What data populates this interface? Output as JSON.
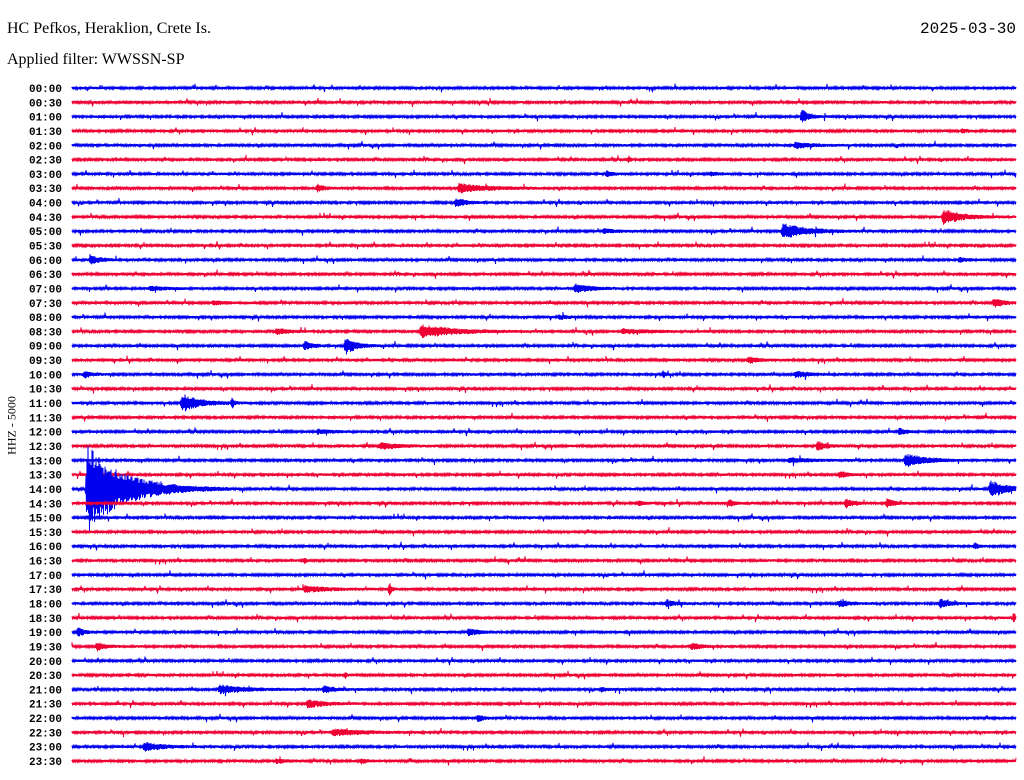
{
  "header": {
    "station": "HC Pefkos, Heraklion, Crete Is.",
    "filter": "Applied filter: WWSSN-SP",
    "date": "2025-03-30"
  },
  "chart_data": {
    "type": "line",
    "title": "HC Pefkos, Heraklion, Crete Is.",
    "ylabel": "HHZ - 5000",
    "row_minutes": 30,
    "colors": [
      "#0000ee",
      "#ee0033"
    ],
    "rows": [
      "00:00",
      "00:30",
      "01:00",
      "01:30",
      "02:00",
      "02:30",
      "03:00",
      "03:30",
      "04:00",
      "04:30",
      "05:00",
      "05:30",
      "06:00",
      "06:30",
      "07:00",
      "07:30",
      "08:00",
      "08:30",
      "09:00",
      "09:30",
      "10:00",
      "10:30",
      "11:00",
      "11:30",
      "12:00",
      "12:30",
      "13:00",
      "13:30",
      "14:00",
      "14:30",
      "15:00",
      "15:30",
      "16:00",
      "16:30",
      "17:00",
      "17:30",
      "18:00",
      "18:30",
      "19:00",
      "19:30",
      "20:00",
      "20:30",
      "21:00",
      "21:30",
      "22:00",
      "22:30",
      "23:00",
      "23:30"
    ],
    "events": [
      {
        "row": 2,
        "minute": 23.2,
        "amp": 6,
        "dur": 0.4
      },
      {
        "row": 3,
        "minute": 28.3,
        "amp": 2,
        "dur": 0.3
      },
      {
        "row": 4,
        "minute": 23.0,
        "amp": 3,
        "dur": 0.8
      },
      {
        "row": 5,
        "minute": 17.7,
        "amp": 3,
        "dur": 0.1
      },
      {
        "row": 6,
        "minute": 17.0,
        "amp": 2.5,
        "dur": 0.3
      },
      {
        "row": 6,
        "minute": 20.3,
        "amp": 1.5,
        "dur": 0.5
      },
      {
        "row": 7,
        "minute": 7.8,
        "amp": 3,
        "dur": 0.4
      },
      {
        "row": 7,
        "minute": 12.3,
        "amp": 4,
        "dur": 1.5
      },
      {
        "row": 8,
        "minute": 12.2,
        "amp": 4,
        "dur": 0.5
      },
      {
        "row": 9,
        "minute": 27.7,
        "amp": 7,
        "dur": 0.9
      },
      {
        "row": 10,
        "minute": 22.6,
        "amp": 7,
        "dur": 1.2
      },
      {
        "row": 10,
        "minute": 16.9,
        "amp": 2,
        "dur": 0.6
      },
      {
        "row": 12,
        "minute": 0.6,
        "amp": 4,
        "dur": 0.5
      },
      {
        "row": 12,
        "minute": 28.2,
        "amp": 2,
        "dur": 0.4
      },
      {
        "row": 14,
        "minute": 16.0,
        "amp": 4,
        "dur": 0.8
      },
      {
        "row": 14,
        "minute": 2.5,
        "amp": 2,
        "dur": 0.8
      },
      {
        "row": 15,
        "minute": 29.3,
        "amp": 4,
        "dur": 0.5
      },
      {
        "row": 15,
        "minute": 4.5,
        "amp": 2,
        "dur": 0.6
      },
      {
        "row": 16,
        "minute": 15.5,
        "amp": 2,
        "dur": 0.4
      },
      {
        "row": 17,
        "minute": 11.1,
        "amp": 6,
        "dur": 1.6
      },
      {
        "row": 17,
        "minute": 6.5,
        "amp": 2.5,
        "dur": 0.7
      },
      {
        "row": 17,
        "minute": 17.5,
        "amp": 2,
        "dur": 1.5
      },
      {
        "row": 18,
        "minute": 7.4,
        "amp": 4,
        "dur": 0.4
      },
      {
        "row": 18,
        "minute": 8.7,
        "amp": 8,
        "dur": 0.5
      },
      {
        "row": 19,
        "minute": 21.5,
        "amp": 3,
        "dur": 0.5
      },
      {
        "row": 20,
        "minute": 0.4,
        "amp": 3,
        "dur": 0.4
      },
      {
        "row": 20,
        "minute": 18.8,
        "amp": 4,
        "dur": 0.1
      },
      {
        "row": 20,
        "minute": 23.0,
        "amp": 3,
        "dur": 0.7
      },
      {
        "row": 22,
        "minute": 3.5,
        "amp": 8,
        "dur": 0.9
      },
      {
        "row": 22,
        "minute": 5.1,
        "amp": 4,
        "dur": 0.1
      },
      {
        "row": 24,
        "minute": 26.3,
        "amp": 3,
        "dur": 0.3
      },
      {
        "row": 24,
        "minute": 7.8,
        "amp": 2,
        "dur": 0.8
      },
      {
        "row": 25,
        "minute": 23.7,
        "amp": 5,
        "dur": 0.4
      },
      {
        "row": 25,
        "minute": 9.8,
        "amp": 3,
        "dur": 1.0
      },
      {
        "row": 26,
        "minute": 26.5,
        "amp": 6,
        "dur": 1.0
      },
      {
        "row": 26,
        "minute": 22.8,
        "amp": 2,
        "dur": 1.2
      },
      {
        "row": 27,
        "minute": 24.4,
        "amp": 3,
        "dur": 0.4
      },
      {
        "row": 28,
        "minute": 0.5,
        "amp": 40,
        "dur": 1.8
      },
      {
        "row": 28,
        "minute": 29.2,
        "amp": 8,
        "dur": 0.8
      },
      {
        "row": 29,
        "minute": 24.6,
        "amp": 4,
        "dur": 0.4
      },
      {
        "row": 29,
        "minute": 25.9,
        "amp": 4,
        "dur": 0.4
      },
      {
        "row": 29,
        "minute": 20.9,
        "amp": 3,
        "dur": 0.3
      },
      {
        "row": 29,
        "minute": 18.0,
        "amp": 2,
        "dur": 0.3
      },
      {
        "row": 32,
        "minute": 28.7,
        "amp": 3,
        "dur": 0.2
      },
      {
        "row": 33,
        "minute": 7.4,
        "amp": 3,
        "dur": 0.1
      },
      {
        "row": 35,
        "minute": 7.4,
        "amp": 3,
        "dur": 1.2
      },
      {
        "row": 35,
        "minute": 10.1,
        "amp": 6,
        "dur": 0.1
      },
      {
        "row": 36,
        "minute": 18.9,
        "amp": 3,
        "dur": 0.5
      },
      {
        "row": 36,
        "minute": 24.4,
        "amp": 3,
        "dur": 0.5
      },
      {
        "row": 36,
        "minute": 27.6,
        "amp": 4,
        "dur": 0.5
      },
      {
        "row": 37,
        "minute": 29.95,
        "amp": 6,
        "dur": 0.05
      },
      {
        "row": 38,
        "minute": 0.2,
        "amp": 4,
        "dur": 0.3
      },
      {
        "row": 38,
        "minute": 12.6,
        "amp": 3,
        "dur": 0.6
      },
      {
        "row": 39,
        "minute": 0.8,
        "amp": 4,
        "dur": 0.4
      },
      {
        "row": 39,
        "minute": 19.7,
        "amp": 3,
        "dur": 0.5
      },
      {
        "row": 41,
        "minute": 8.7,
        "amp": 3,
        "dur": 0.05
      },
      {
        "row": 42,
        "minute": 4.7,
        "amp": 4,
        "dur": 1.2
      },
      {
        "row": 42,
        "minute": 8.0,
        "amp": 3,
        "dur": 0.6
      },
      {
        "row": 42,
        "minute": 16.8,
        "amp": 2,
        "dur": 0.3
      },
      {
        "row": 43,
        "minute": 7.5,
        "amp": 4,
        "dur": 0.8
      },
      {
        "row": 44,
        "minute": 12.9,
        "amp": 3,
        "dur": 0.3
      },
      {
        "row": 45,
        "minute": 8.3,
        "amp": 3,
        "dur": 1.5
      },
      {
        "row": 46,
        "minute": 2.3,
        "amp": 4,
        "dur": 1.0
      },
      {
        "row": 47,
        "minute": 6.5,
        "amp": 2,
        "dur": 0.5
      },
      {
        "row": 47,
        "minute": 9.2,
        "amp": 2,
        "dur": 0.3
      }
    ]
  }
}
